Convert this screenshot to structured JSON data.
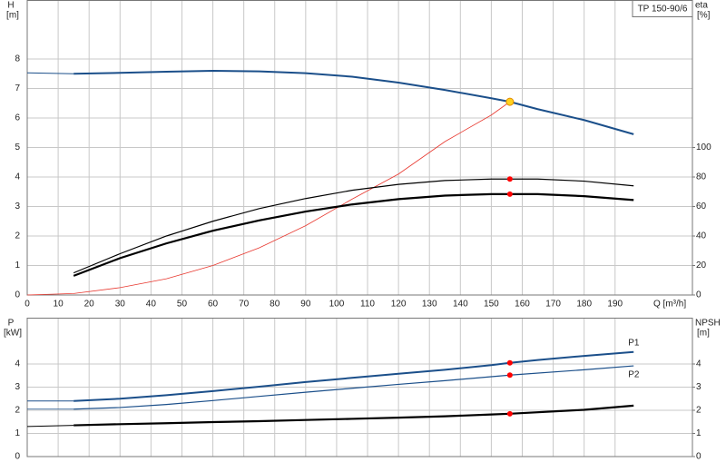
{
  "chart_data": [
    {
      "type": "line",
      "title": "TP 150-90/6",
      "xlabel": "Q [m³/h]",
      "ylabel": "H",
      "yunit": "[m]",
      "y2label": "eta",
      "y2unit": "[%]",
      "xlim": [
        0,
        215
      ],
      "xticks": [
        0,
        10,
        20,
        30,
        40,
        50,
        60,
        70,
        80,
        90,
        100,
        110,
        120,
        130,
        140,
        150,
        160,
        170,
        180,
        190
      ],
      "ylim": [
        0,
        10
      ],
      "yticks": [
        0,
        1,
        2,
        3,
        4,
        5,
        6,
        7,
        8
      ],
      "y2lim": [
        0,
        200
      ],
      "y2ticks": [
        0,
        20,
        40,
        60,
        80,
        100
      ],
      "grid": true,
      "series": [
        {
          "color": "#1b4f8a",
          "width": 1,
          "x": [
            0,
            15
          ],
          "values": [
            7.53,
            7.5
          ]
        },
        {
          "color": "#1b4f8a",
          "width": 2,
          "x": [
            15,
            30,
            45,
            60,
            75,
            90,
            105,
            120,
            135,
            150,
            156,
            165,
            180,
            196
          ],
          "values": [
            7.5,
            7.53,
            7.57,
            7.6,
            7.58,
            7.52,
            7.4,
            7.2,
            6.95,
            6.67,
            6.55,
            6.3,
            5.93,
            5.45
          ]
        },
        {
          "color": "#e8382f",
          "width": 0.8,
          "x": [
            0,
            15,
            30,
            45,
            60,
            75,
            90,
            105,
            120,
            135,
            150,
            156
          ],
          "values": [
            0,
            0.05,
            0.25,
            0.55,
            1.0,
            1.6,
            2.35,
            3.25,
            4.1,
            5.2,
            6.1,
            6.55
          ]
        },
        {
          "color": "#000000",
          "width": 1.2,
          "axis": "y2",
          "x": [
            15,
            30,
            45,
            60,
            75,
            90,
            105,
            120,
            135,
            150,
            165,
            180,
            196
          ],
          "values": [
            15,
            28,
            40,
            50,
            58.6,
            65.4,
            71,
            75,
            77.6,
            78.6,
            78.6,
            77.2,
            74
          ]
        },
        {
          "color": "#000000",
          "width": 2.2,
          "axis": "y2",
          "x": [
            15,
            30,
            45,
            60,
            75,
            90,
            105,
            120,
            135,
            150,
            165,
            180,
            196
          ],
          "values": [
            13,
            25,
            35,
            43.6,
            50.6,
            56.6,
            61.4,
            65,
            67.4,
            68.4,
            68.4,
            67,
            64.4
          ]
        }
      ],
      "markers": [
        {
          "x": 156,
          "y": 6.55,
          "color": "#ffd21f"
        },
        {
          "x": 156,
          "y": 78.6,
          "axis": "y2",
          "color": "#ff0000"
        },
        {
          "x": 156,
          "y": 68.4,
          "axis": "y2",
          "color": "#ff0000"
        }
      ]
    },
    {
      "type": "line",
      "ylabel": "P",
      "yunit": "[kW]",
      "y2label": "NPSH",
      "y2unit": "[m]",
      "ylim": [
        0,
        6
      ],
      "yticks": [
        0,
        1,
        2,
        3,
        4
      ],
      "y2lim": [
        0,
        6
      ],
      "y2ticks": [
        0,
        1,
        2,
        3,
        4
      ],
      "grid": true,
      "series": [
        {
          "color": "#1b4f8a",
          "width": 1,
          "x": [
            0,
            15
          ],
          "values": [
            2.4,
            2.4
          ]
        },
        {
          "name": "P1",
          "color": "#1b4f8a",
          "width": 2,
          "x": [
            15,
            30,
            45,
            60,
            75,
            90,
            105,
            120,
            135,
            150,
            156,
            165,
            180,
            196
          ],
          "values": [
            2.4,
            2.5,
            2.65,
            2.83,
            3.02,
            3.22,
            3.4,
            3.58,
            3.75,
            3.95,
            4.05,
            4.17,
            4.35,
            4.52
          ]
        },
        {
          "color": "#1b4f8a",
          "width": 0.8,
          "x": [
            0,
            15
          ],
          "values": [
            2.05,
            2.05
          ]
        },
        {
          "name": "P2",
          "color": "#1b4f8a",
          "width": 1.2,
          "x": [
            15,
            30,
            45,
            60,
            75,
            90,
            105,
            120,
            135,
            150,
            156,
            180,
            196
          ],
          "values": [
            2.05,
            2.12,
            2.25,
            2.42,
            2.6,
            2.78,
            2.95,
            3.12,
            3.28,
            3.45,
            3.52,
            3.75,
            3.92
          ]
        },
        {
          "color": "#000000",
          "width": 1,
          "axis": "y2",
          "x": [
            0,
            15
          ],
          "values": [
            1.3,
            1.35
          ]
        },
        {
          "color": "#000000",
          "width": 2.2,
          "axis": "y2",
          "x": [
            15,
            30,
            45,
            60,
            75,
            90,
            105,
            120,
            135,
            150,
            156,
            180,
            196
          ],
          "values": [
            1.35,
            1.4,
            1.44,
            1.49,
            1.53,
            1.58,
            1.63,
            1.68,
            1.74,
            1.82,
            1.85,
            2.02,
            2.2
          ]
        }
      ],
      "markers": [
        {
          "x": 156,
          "y": 4.05,
          "color": "#ff0000"
        },
        {
          "x": 156,
          "y": 3.52,
          "color": "#ff0000"
        },
        {
          "x": 156,
          "y": 1.85,
          "axis": "y2",
          "color": "#ff0000"
        }
      ]
    }
  ]
}
